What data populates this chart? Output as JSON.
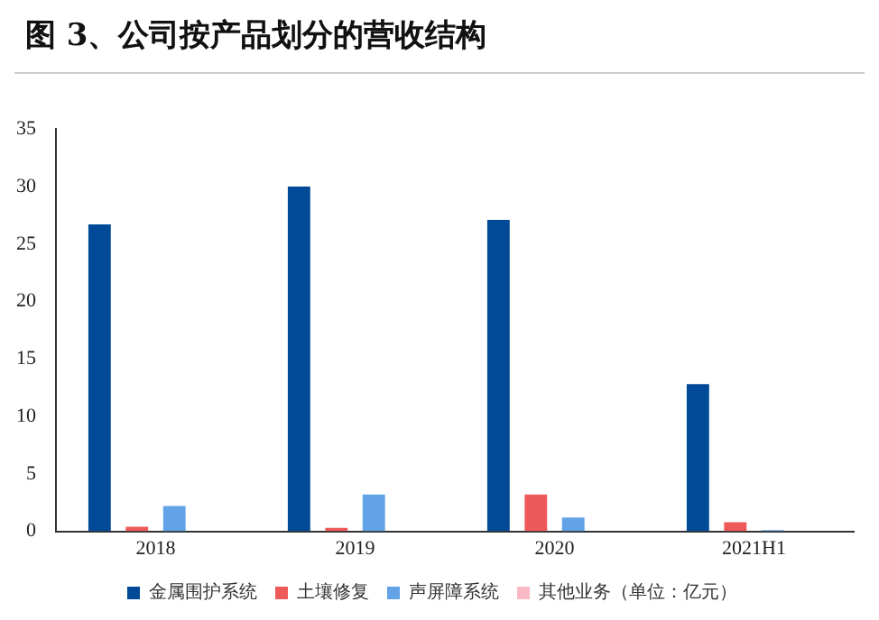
{
  "chart_data": {
    "type": "bar",
    "title": "图 3、公司按产品划分的营收结构",
    "categories": [
      "2018",
      "2019",
      "2020",
      "2021H1"
    ],
    "series": [
      {
        "name": "金属围护系统",
        "color": "#004a98",
        "values": [
          26.7,
          30.0,
          27.1,
          12.8
        ]
      },
      {
        "name": "土壤修复",
        "color": "#ee5a5a",
        "values": [
          0.4,
          0.3,
          3.2,
          0.8
        ]
      },
      {
        "name": "声屏障系统",
        "color": "#62a2e6",
        "values": [
          2.2,
          3.2,
          1.2,
          0.1
        ]
      },
      {
        "name": "其他业务（单位：亿元）",
        "color": "#f9b8c4",
        "values": [
          0,
          0,
          0,
          0
        ]
      }
    ],
    "ylim": [
      0,
      35
    ],
    "yticks": [
      0,
      5,
      10,
      15,
      20,
      25,
      30,
      35
    ],
    "grid": false,
    "legend": "bottom"
  }
}
